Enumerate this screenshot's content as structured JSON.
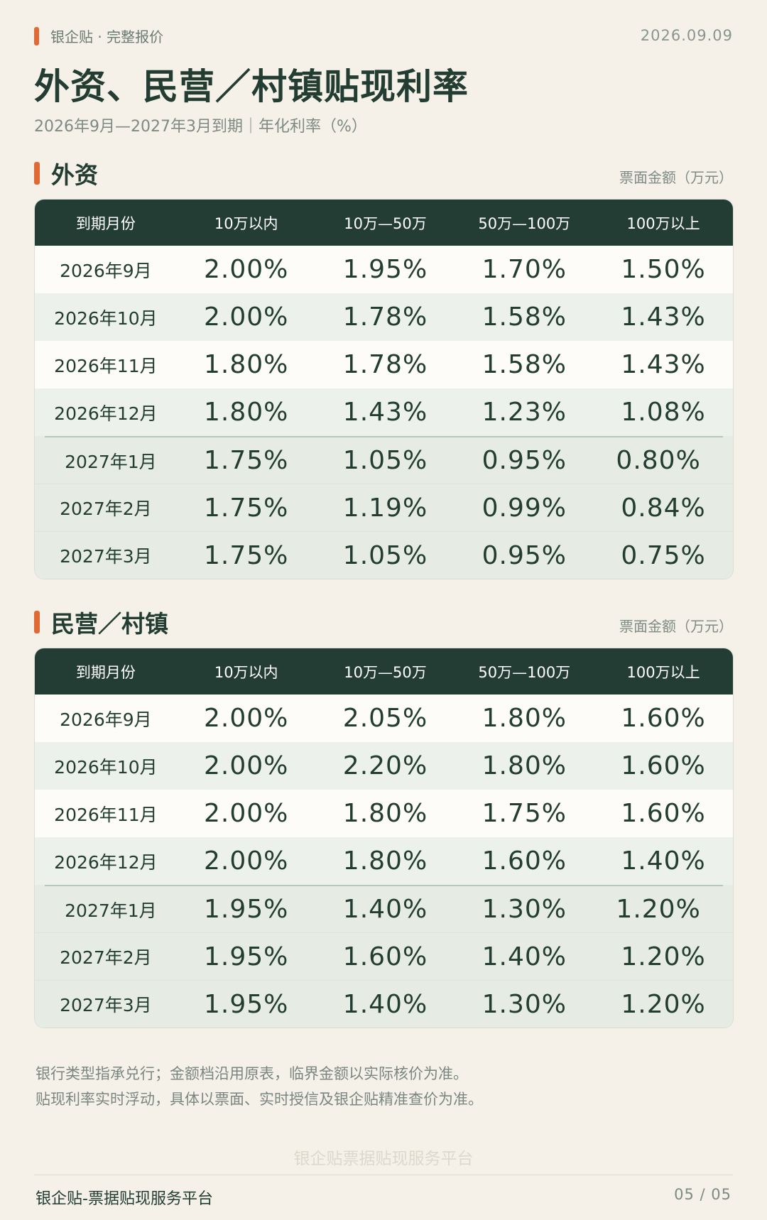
{
  "header": {
    "brand": "银企贴 · 完整报价",
    "date": "2026.09.09",
    "title": "外资、民营／村镇贴现利率",
    "subtitle": "2026年9月—2027年3月到期｜年化利率（%）"
  },
  "sections": [
    {
      "title": "外资",
      "unit": "票面金额（万元）",
      "columns": [
        "到期月份",
        "10万以内",
        "10万—50万",
        "50万—100万",
        "100万以上"
      ],
      "rows": [
        [
          "2026年9月",
          "2.00%",
          "1.95%",
          "1.70%",
          "1.50%"
        ],
        [
          "2026年10月",
          "2.00%",
          "1.78%",
          "1.58%",
          "1.43%"
        ],
        [
          "2026年11月",
          "1.80%",
          "1.78%",
          "1.58%",
          "1.43%"
        ],
        [
          "2026年12月",
          "1.80%",
          "1.43%",
          "1.23%",
          "1.08%"
        ],
        [
          "2027年1月",
          "1.75%",
          "1.05%",
          "0.95%",
          "0.80%"
        ],
        [
          "2027年2月",
          "1.75%",
          "1.19%",
          "0.99%",
          "0.84%"
        ],
        [
          "2027年3月",
          "1.75%",
          "1.05%",
          "0.95%",
          "0.75%"
        ]
      ]
    },
    {
      "title": "民营／村镇",
      "unit": "票面金额（万元）",
      "columns": [
        "到期月份",
        "10万以内",
        "10万—50万",
        "50万—100万",
        "100万以上"
      ],
      "rows": [
        [
          "2026年9月",
          "2.00%",
          "2.05%",
          "1.80%",
          "1.60%"
        ],
        [
          "2026年10月",
          "2.00%",
          "2.20%",
          "1.80%",
          "1.60%"
        ],
        [
          "2026年11月",
          "2.00%",
          "1.80%",
          "1.75%",
          "1.60%"
        ],
        [
          "2026年12月",
          "2.00%",
          "1.80%",
          "1.60%",
          "1.40%"
        ],
        [
          "2027年1月",
          "1.95%",
          "1.40%",
          "1.30%",
          "1.20%"
        ],
        [
          "2027年2月",
          "1.95%",
          "1.60%",
          "1.40%",
          "1.20%"
        ],
        [
          "2027年3月",
          "1.95%",
          "1.40%",
          "1.30%",
          "1.20%"
        ]
      ]
    }
  ],
  "notes": [
    "银行类型指承兑行；金额档沿用原表，临界金额以实际核价为准。",
    "贴现利率实时浮动，具体以票面、实时授信及银企贴精准查价为准。"
  ],
  "watermark": "银企贴票据贴现服务平台",
  "footer": {
    "left": "银企贴-票据贴现服务平台",
    "page": "05 / 05"
  },
  "colors": {
    "background": "#f5f1e8",
    "header_dark": "#243d34",
    "accent": "#e06a35"
  }
}
